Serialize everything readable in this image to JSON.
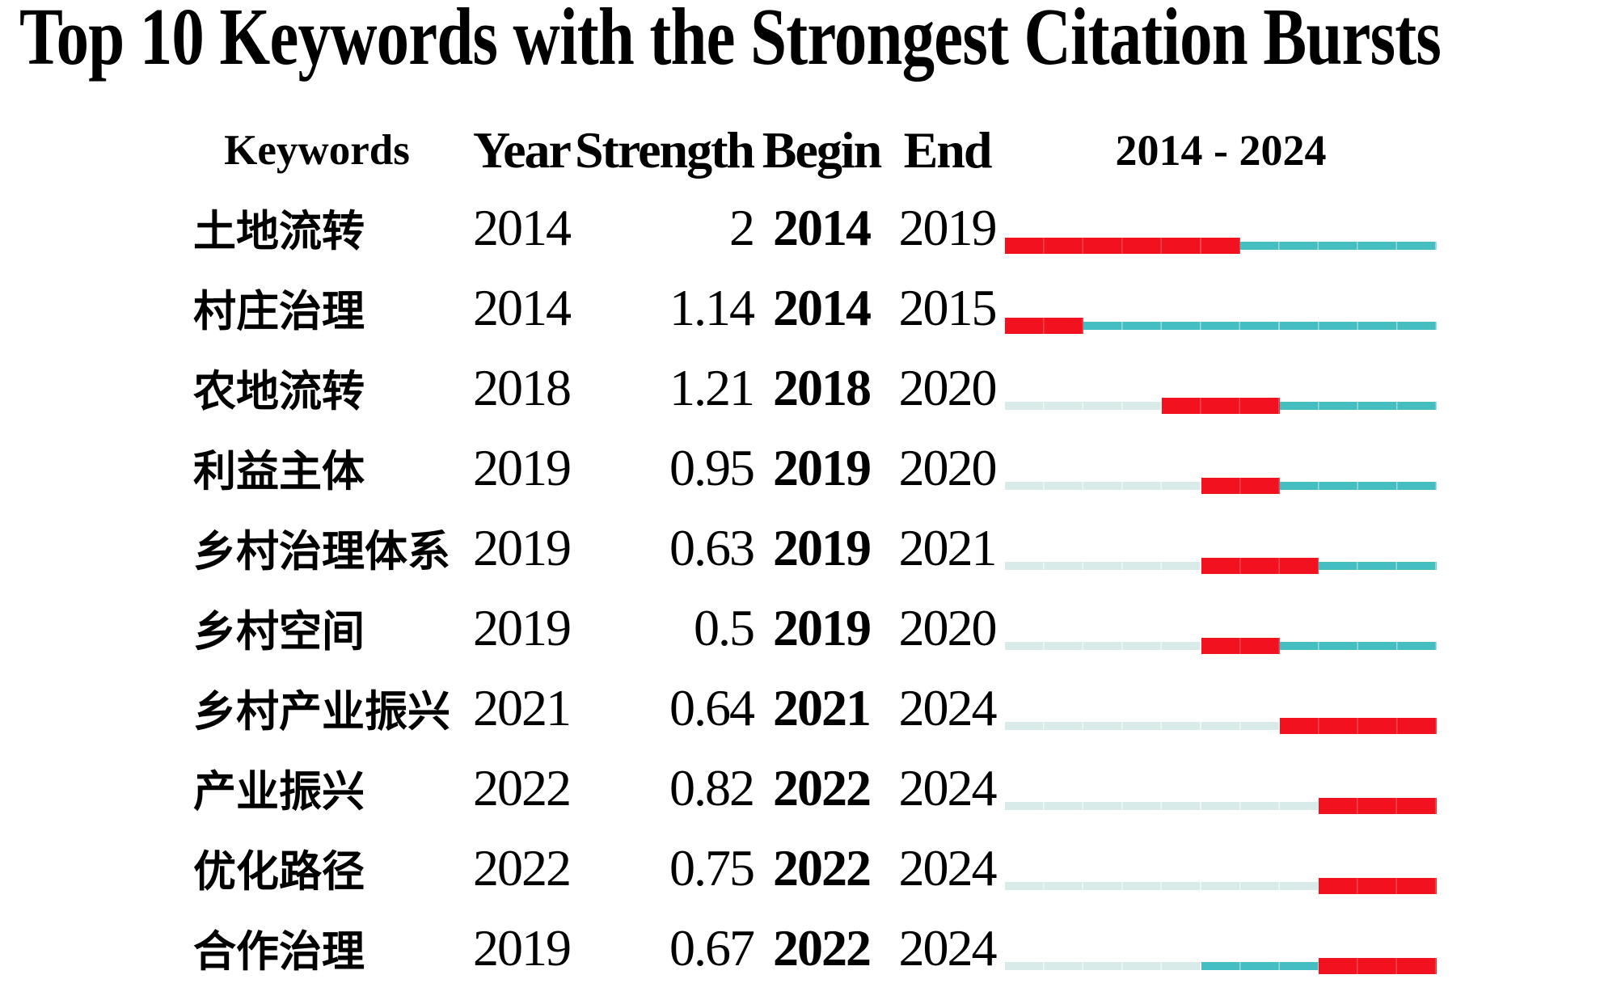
{
  "title": "Top 10 Keywords with the Strongest Citation Bursts",
  "table": {
    "headers": {
      "keywords": "Keywords",
      "year": "Year",
      "strength": "Strength",
      "begin": "Begin",
      "end": "End",
      "range": "2014 - 2024"
    }
  },
  "colors": {
    "burst": "#f2121f",
    "active": "#45bec2",
    "inactive": "#d8ebe8",
    "text": "#000000",
    "background": "#ffffff"
  },
  "chart_data": {
    "type": "table",
    "title": "Top 10 Keywords with the Strongest Citation Bursts",
    "columns": [
      "Keywords",
      "Year",
      "Strength",
      "Begin",
      "End",
      "2014 - 2024"
    ],
    "period_start": 2014,
    "period_end": 2024,
    "bar_legend": {
      "burst": "red segment: burst period (Begin-End)",
      "active": "teal segment: keyword active, no burst",
      "inactive": "pale segment: before keyword appearance"
    },
    "rows": [
      {
        "keyword": "土地流转",
        "year": 2014,
        "strength": 2,
        "begin": 2014,
        "end": 2019,
        "segments": [
          {
            "kind": "burst",
            "from": 2014,
            "to": 2019
          },
          {
            "kind": "active",
            "from": 2020,
            "to": 2024
          }
        ]
      },
      {
        "keyword": "村庄治理",
        "year": 2014,
        "strength": 1.14,
        "begin": 2014,
        "end": 2015,
        "segments": [
          {
            "kind": "burst",
            "from": 2014,
            "to": 2015
          },
          {
            "kind": "active",
            "from": 2016,
            "to": 2024
          }
        ]
      },
      {
        "keyword": "农地流转",
        "year": 2018,
        "strength": 1.21,
        "begin": 2018,
        "end": 2020,
        "segments": [
          {
            "kind": "inactive",
            "from": 2014,
            "to": 2017
          },
          {
            "kind": "burst",
            "from": 2018,
            "to": 2020
          },
          {
            "kind": "active",
            "from": 2021,
            "to": 2024
          }
        ]
      },
      {
        "keyword": "利益主体",
        "year": 2019,
        "strength": 0.95,
        "begin": 2019,
        "end": 2020,
        "segments": [
          {
            "kind": "inactive",
            "from": 2014,
            "to": 2018
          },
          {
            "kind": "burst",
            "from": 2019,
            "to": 2020
          },
          {
            "kind": "active",
            "from": 2021,
            "to": 2024
          }
        ]
      },
      {
        "keyword": "乡村治理体系",
        "year": 2019,
        "strength": 0.63,
        "begin": 2019,
        "end": 2021,
        "segments": [
          {
            "kind": "inactive",
            "from": 2014,
            "to": 2018
          },
          {
            "kind": "burst",
            "from": 2019,
            "to": 2021
          },
          {
            "kind": "active",
            "from": 2022,
            "to": 2024
          }
        ]
      },
      {
        "keyword": "乡村空间",
        "year": 2019,
        "strength": 0.5,
        "begin": 2019,
        "end": 2020,
        "segments": [
          {
            "kind": "inactive",
            "from": 2014,
            "to": 2018
          },
          {
            "kind": "burst",
            "from": 2019,
            "to": 2020
          },
          {
            "kind": "active",
            "from": 2021,
            "to": 2024
          }
        ]
      },
      {
        "keyword": "乡村产业振兴",
        "year": 2021,
        "strength": 0.64,
        "begin": 2021,
        "end": 2024,
        "segments": [
          {
            "kind": "inactive",
            "from": 2014,
            "to": 2020
          },
          {
            "kind": "burst",
            "from": 2021,
            "to": 2024
          }
        ]
      },
      {
        "keyword": "产业振兴",
        "year": 2022,
        "strength": 0.82,
        "begin": 2022,
        "end": 2024,
        "segments": [
          {
            "kind": "inactive",
            "from": 2014,
            "to": 2021
          },
          {
            "kind": "burst",
            "from": 2022,
            "to": 2024
          }
        ]
      },
      {
        "keyword": "优化路径",
        "year": 2022,
        "strength": 0.75,
        "begin": 2022,
        "end": 2024,
        "segments": [
          {
            "kind": "inactive",
            "from": 2014,
            "to": 2021
          },
          {
            "kind": "burst",
            "from": 2022,
            "to": 2024
          }
        ]
      },
      {
        "keyword": "合作治理",
        "year": 2019,
        "strength": 0.67,
        "begin": 2022,
        "end": 2024,
        "segments": [
          {
            "kind": "inactive",
            "from": 2014,
            "to": 2018
          },
          {
            "kind": "active",
            "from": 2019,
            "to": 2021
          },
          {
            "kind": "burst",
            "from": 2022,
            "to": 2024
          }
        ]
      }
    ]
  }
}
